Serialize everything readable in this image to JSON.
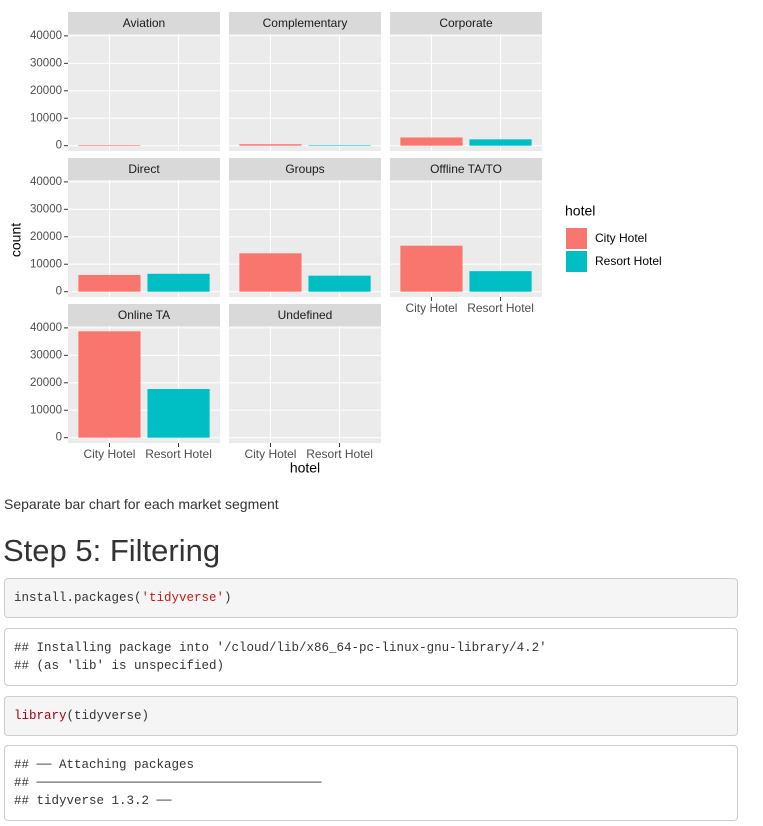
{
  "chart_data": {
    "type": "bar",
    "x_label": "hotel",
    "y_label": "count",
    "legend_title": "hotel",
    "legend_position": "right",
    "categories": [
      "City Hotel",
      "Resort Hotel"
    ],
    "colors": [
      "#f8766d",
      "#00bfc4"
    ],
    "ylim": [
      -1937,
      40685
    ],
    "yticks": [
      0,
      10000,
      20000,
      30000,
      40000
    ],
    "grid": true,
    "panels": [
      {
        "title": "Aviation",
        "values": [
          237,
          0
        ]
      },
      {
        "title": "Complementary",
        "values": [
          542,
          201
        ]
      },
      {
        "title": "Corporate",
        "values": [
          2986,
          2309
        ]
      },
      {
        "title": "Direct",
        "values": [
          6093,
          6513
        ]
      },
      {
        "title": "Groups",
        "values": [
          13975,
          5836
        ]
      },
      {
        "title": "Offline TA/TO",
        "values": [
          16747,
          7472
        ]
      },
      {
        "title": "Online TA",
        "values": [
          38748,
          17729
        ]
      },
      {
        "title": "Undefined",
        "values": [
          2,
          0
        ]
      }
    ]
  },
  "caption": "Separate bar chart for each market segment",
  "heading": "Step 5: Filtering",
  "code_blocks": [
    {
      "style": "input",
      "lines": [
        [
          {
            "text": "install.packages(",
            "color": "#333333"
          },
          {
            "text": "'tidyverse'",
            "color": "#c41a16"
          },
          {
            "text": ")",
            "color": "#333333"
          }
        ]
      ]
    },
    {
      "style": "output",
      "lines": [
        [
          {
            "text": "## Installing package into '/cloud/lib/x86_64-pc-linux-gnu-library/4.2'",
            "color": "#333333"
          }
        ],
        [
          {
            "text": "## (as 'lib' is unspecified)",
            "color": "#333333"
          }
        ]
      ]
    },
    {
      "style": "input",
      "lines": [
        [
          {
            "text": "library",
            "color": "#a2000d"
          },
          {
            "text": "(tidyverse)",
            "color": "#333333"
          }
        ]
      ]
    },
    {
      "style": "output",
      "lines": [
        [
          {
            "text": "## ── Attaching packages",
            "color": "#333333"
          }
        ],
        [
          {
            "text": "## ──────────────────────────────────────",
            "color": "#333333"
          }
        ],
        [
          {
            "text": "## tidyverse 1.3.2 ──",
            "color": "#333333"
          }
        ]
      ]
    }
  ]
}
